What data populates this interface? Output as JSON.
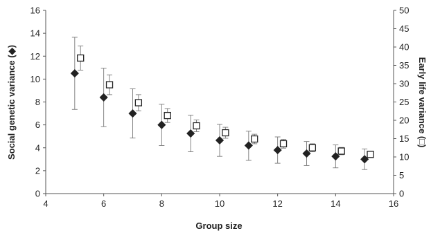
{
  "chart_data": {
    "type": "scatter",
    "xlabel": "Group size",
    "ylabel": "Social genetic variance (◆)",
    "y2label": "Early life variance (□)",
    "xlim": [
      4,
      16
    ],
    "xticks": [
      4,
      6,
      8,
      10,
      12,
      14,
      16
    ],
    "ylim": [
      0,
      16
    ],
    "yticks": [
      0,
      2,
      4,
      6,
      8,
      10,
      12,
      14,
      16
    ],
    "y2lim": [
      0,
      50
    ],
    "y2ticks": [
      0,
      5,
      10,
      15,
      20,
      25,
      30,
      35,
      40,
      45,
      50
    ],
    "grid": false,
    "series": [
      {
        "marker": "filled-diamond",
        "color": "#222222",
        "axis": "left",
        "x": [
          5,
          6,
          7,
          8,
          9,
          10,
          11,
          12,
          13,
          14,
          15
        ],
        "y": [
          10.5,
          8.4,
          7.0,
          6.0,
          5.25,
          4.65,
          4.2,
          3.8,
          3.5,
          3.25,
          3.0
        ],
        "err_low": [
          7.35,
          5.85,
          4.85,
          4.2,
          3.65,
          3.25,
          2.9,
          2.65,
          2.45,
          2.25,
          2.1
        ],
        "err_high": [
          13.65,
          10.95,
          9.15,
          7.8,
          6.85,
          6.05,
          5.45,
          4.95,
          4.55,
          4.25,
          3.9
        ]
      },
      {
        "marker": "open-square",
        "color": "#222222",
        "axis": "right",
        "x": [
          5.2,
          6.2,
          7.2,
          8.2,
          9.2,
          10.2,
          11.2,
          12.2,
          13.2,
          14.2,
          15.2
        ],
        "y": [
          37.0,
          29.7,
          24.8,
          21.3,
          18.5,
          16.6,
          14.9,
          13.6,
          12.5,
          11.6,
          10.7
        ],
        "err_low": [
          33.7,
          27.0,
          22.6,
          19.4,
          16.9,
          15.1,
          13.6,
          12.4,
          11.4,
          10.6,
          9.8
        ],
        "err_high": [
          40.3,
          32.4,
          27.0,
          23.2,
          20.1,
          18.1,
          16.2,
          14.8,
          13.6,
          12.6,
          11.6
        ]
      }
    ]
  }
}
